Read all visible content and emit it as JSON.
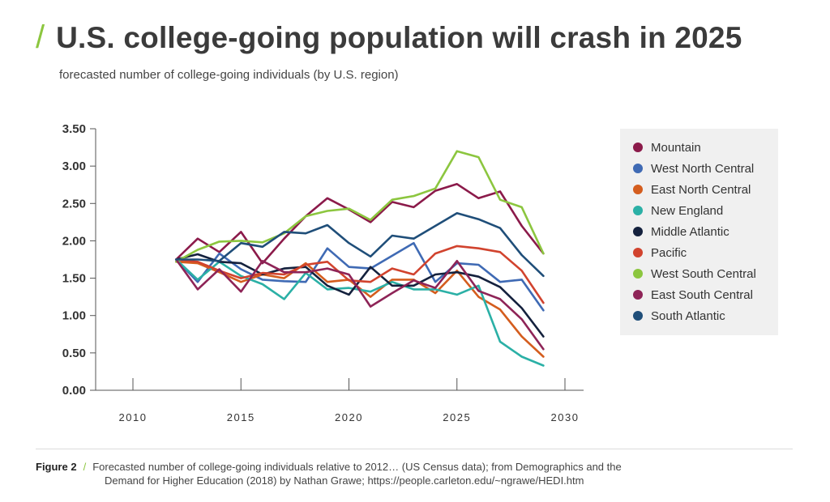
{
  "header": {
    "title": "U.S. college-going population will crash in 2025",
    "subtitle": "forecasted number of college-going individuals (by U.S. region)"
  },
  "caption": {
    "label": "Figure 2",
    "line1": "Forecasted number of college-going individuals relative to 2012… (US Census data); from Demographics and the",
    "line2": "Demand for Higher Education (2018) by Nathan Grawe; https://people.carleton.edu/~ngrawe/HEDI.htm"
  },
  "colors": {
    "accent": "#8cc63f",
    "divider": "#dcdcdc",
    "legend_bg": "#f0f0f0"
  },
  "chart_data": {
    "type": "line",
    "title": "",
    "xlabel": "",
    "ylabel": "",
    "xlim": [
      2008,
      2031
    ],
    "ylim": [
      0,
      3.5
    ],
    "xticks": [
      2010,
      2015,
      2020,
      2025,
      2030
    ],
    "yticks": [
      0,
      0.5,
      1.0,
      1.5,
      2.0,
      2.5,
      3.0,
      3.5
    ],
    "ytick_labels": [
      "0.00",
      "0.50",
      "1.00",
      "1.50",
      "2.00",
      "2.50",
      "3.00",
      "3.50"
    ],
    "grid": false,
    "legend": "right",
    "x": [
      2012,
      2013,
      2014,
      2015,
      2016,
      2017,
      2018,
      2019,
      2020,
      2021,
      2022,
      2023,
      2024,
      2025,
      2026,
      2027,
      2028,
      2029
    ],
    "series": [
      {
        "name": "Mountain",
        "color": "#8b1a4a",
        "values": [
          1.75,
          2.03,
          1.85,
          2.12,
          1.7,
          2.03,
          2.33,
          2.57,
          2.42,
          2.25,
          2.52,
          2.45,
          2.67,
          2.76,
          2.57,
          2.66,
          2.2,
          1.83
        ]
      },
      {
        "name": "West North Central",
        "color": "#3f6ab4",
        "values": [
          1.75,
          1.45,
          1.83,
          1.62,
          1.48,
          1.46,
          1.45,
          1.9,
          1.65,
          1.63,
          1.8,
          1.97,
          1.45,
          1.7,
          1.68,
          1.45,
          1.48,
          1.07
        ]
      },
      {
        "name": "East North Central",
        "color": "#d45d1e",
        "values": [
          1.72,
          1.7,
          1.58,
          1.45,
          1.55,
          1.5,
          1.7,
          1.45,
          1.48,
          1.25,
          1.48,
          1.48,
          1.3,
          1.6,
          1.25,
          1.08,
          0.72,
          0.45
        ]
      },
      {
        "name": "New England",
        "color": "#2bb0a6",
        "values": [
          1.75,
          1.48,
          1.72,
          1.53,
          1.42,
          1.22,
          1.57,
          1.35,
          1.37,
          1.32,
          1.45,
          1.35,
          1.35,
          1.28,
          1.4,
          0.65,
          0.45,
          0.33
        ]
      },
      {
        "name": "Middle Atlantic",
        "color": "#14213d",
        "values": [
          1.75,
          1.82,
          1.72,
          1.7,
          1.55,
          1.63,
          1.65,
          1.4,
          1.28,
          1.65,
          1.4,
          1.4,
          1.55,
          1.58,
          1.52,
          1.38,
          1.1,
          0.72
        ]
      },
      {
        "name": "Pacific",
        "color": "#d1432e",
        "values": [
          1.75,
          1.72,
          1.6,
          1.5,
          1.57,
          1.55,
          1.68,
          1.72,
          1.47,
          1.45,
          1.63,
          1.55,
          1.83,
          1.93,
          1.9,
          1.85,
          1.6,
          1.17
        ]
      },
      {
        "name": "West South Central",
        "color": "#8cc63f",
        "values": [
          1.72,
          1.88,
          1.99,
          2.0,
          1.98,
          2.1,
          2.33,
          2.4,
          2.43,
          2.28,
          2.55,
          2.6,
          2.7,
          3.2,
          3.12,
          2.55,
          2.45,
          1.83
        ]
      },
      {
        "name": "East South Central",
        "color": "#8e2457",
        "values": [
          1.75,
          1.35,
          1.62,
          1.32,
          1.73,
          1.58,
          1.58,
          1.63,
          1.55,
          1.12,
          1.3,
          1.47,
          1.37,
          1.73,
          1.33,
          1.22,
          0.95,
          0.55
        ]
      },
      {
        "name": "South Atlantic",
        "color": "#1f4e79",
        "values": [
          1.75,
          1.75,
          1.73,
          1.97,
          1.92,
          2.12,
          2.1,
          2.21,
          1.97,
          1.79,
          2.07,
          2.03,
          2.2,
          2.37,
          2.29,
          2.17,
          1.81,
          1.53
        ]
      }
    ]
  }
}
